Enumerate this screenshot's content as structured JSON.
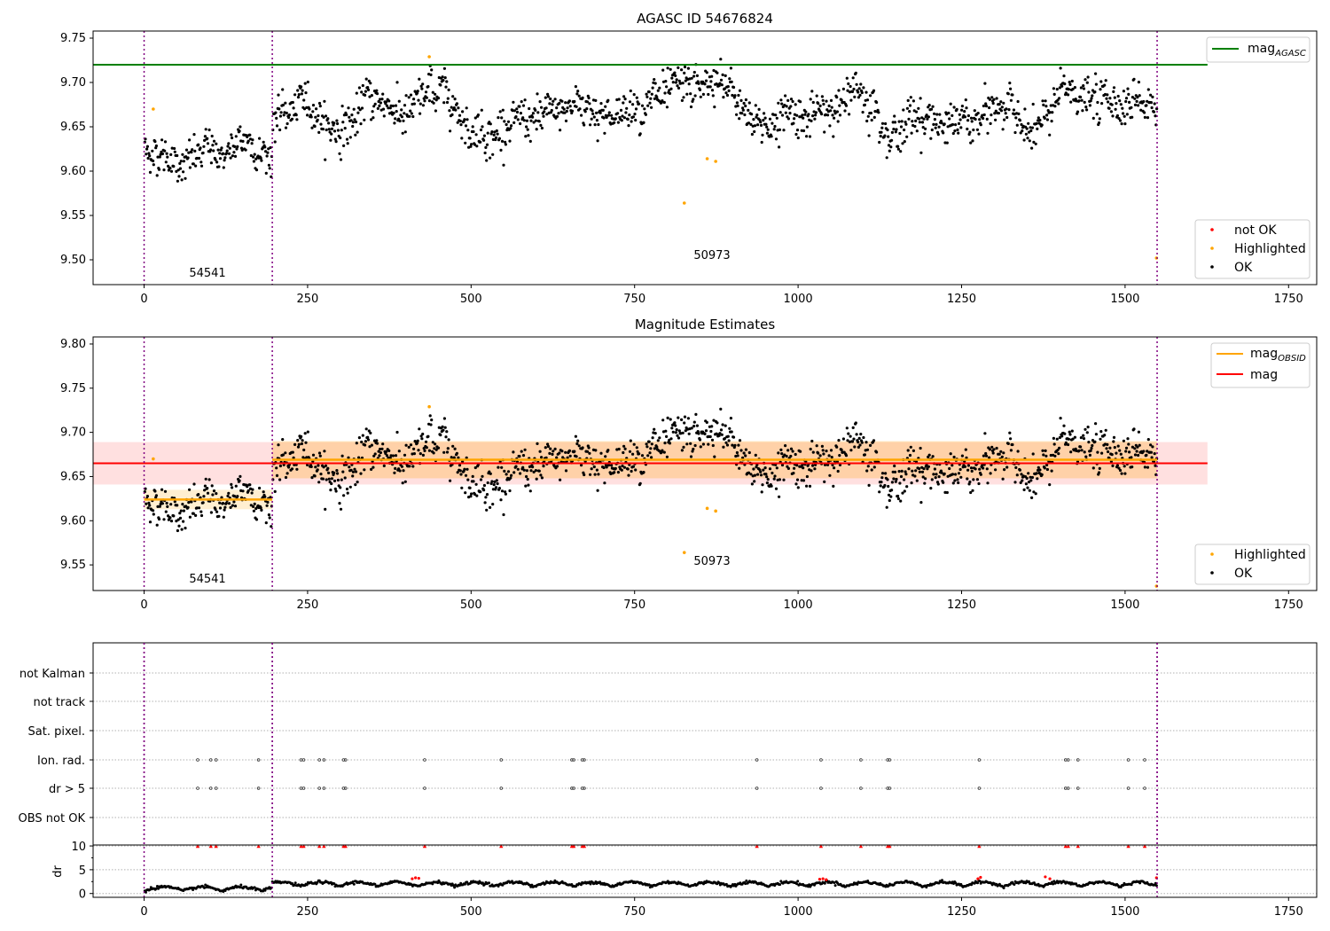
{
  "colors": {
    "ok": "#000000",
    "highlighted": "#ffa500",
    "not_ok": "#ff0000",
    "mag_agasc": "#008000",
    "mag_obsid": "#ffa500",
    "mag": "#ff0000",
    "obs_boundary": "#800080"
  },
  "chart_data": [
    {
      "type": "scatter",
      "title": "AGASC ID 54676824",
      "xlabel": "",
      "ylabel": "",
      "xlim": [
        -78,
        1793
      ],
      "ylim": [
        9.472,
        9.758
      ],
      "xticks": [
        0,
        250,
        500,
        750,
        1000,
        1250,
        1500,
        1750
      ],
      "yticks": [
        9.5,
        9.55,
        9.6,
        9.65,
        9.7,
        9.75
      ],
      "grid": false,
      "vlines": [
        0,
        196,
        1549
      ],
      "hlines": [
        {
          "name": "mag_AGASC",
          "y": 9.72,
          "x": [
            -78,
            1626
          ]
        }
      ],
      "obs_labels": [
        {
          "text": "54541",
          "x": 98,
          "y": 9.486
        },
        {
          "text": "50973",
          "x": 870,
          "y": 9.505
        }
      ],
      "legend_lines": {
        "placement": "top-right",
        "entries": [
          {
            "label": "mag",
            "sub": "AGASC"
          }
        ]
      },
      "legend_points": {
        "placement": "bottom-right",
        "entries": [
          "not OK",
          "Highlighted",
          "OK"
        ]
      },
      "highlighted_points": [
        [
          14,
          9.67
        ],
        [
          436,
          9.729
        ],
        [
          826,
          9.564
        ],
        [
          861,
          9.614
        ],
        [
          874,
          9.611
        ],
        [
          1548,
          9.502
        ]
      ],
      "ok_segments": [
        {
          "x": [
            0,
            196
          ],
          "mean": 9.624,
          "spread": 0.02
        },
        {
          "x": [
            196,
            1549
          ],
          "mean": 9.668,
          "spread": 0.022
        }
      ]
    },
    {
      "type": "scatter",
      "title": "Magnitude Estimates",
      "xlabel": "",
      "ylabel": "",
      "xlim": [
        -78,
        1793
      ],
      "ylim": [
        9.521,
        9.808
      ],
      "xticks": [
        0,
        250,
        500,
        750,
        1000,
        1250,
        1500,
        1750
      ],
      "yticks": [
        9.55,
        9.6,
        9.65,
        9.7,
        9.75,
        9.8
      ],
      "grid": false,
      "vlines": [
        0,
        196,
        1549
      ],
      "bands": [
        {
          "name": "mag",
          "y": [
            9.641,
            9.689
          ],
          "x": [
            -78,
            1626
          ]
        },
        {
          "name": "mag_OBSID 54541",
          "y": [
            9.613,
            9.635
          ],
          "x": [
            0,
            196
          ]
        },
        {
          "name": "mag_OBSID 50973",
          "y": [
            9.648,
            9.69
          ],
          "x": [
            196,
            1549
          ]
        }
      ],
      "lines": [
        {
          "name": "mag_OBSID",
          "segments": [
            {
              "x": [
                0,
                196
              ],
              "y": 9.624
            },
            {
              "x": [
                196,
                1549
              ],
              "y": 9.669
            }
          ]
        },
        {
          "name": "mag",
          "y": 9.665,
          "x": [
            -78,
            1626
          ]
        }
      ],
      "obs_labels": [
        {
          "text": "54541",
          "x": 98,
          "y": 9.535
        },
        {
          "text": "50973",
          "x": 870,
          "y": 9.554
        }
      ],
      "legend_lines": {
        "placement": "top-right",
        "entries": [
          {
            "label": "mag",
            "sub": "OBSID"
          },
          {
            "label": "mag",
            "sub": ""
          }
        ]
      },
      "legend_points": {
        "placement": "bottom-right",
        "entries": [
          "Highlighted",
          "OK"
        ]
      },
      "highlighted_points": [
        [
          14,
          9.67
        ],
        [
          436,
          9.729
        ],
        [
          826,
          9.564
        ],
        [
          861,
          9.614
        ],
        [
          874,
          9.611
        ],
        [
          1548,
          9.526
        ]
      ]
    },
    {
      "type": "scatter",
      "title": "",
      "xlabel": "",
      "ylabel": "",
      "xlim": [
        -78,
        1793
      ],
      "xticks": [
        0,
        250,
        500,
        750,
        1000,
        1250,
        1500,
        1750
      ],
      "vlines": [
        0,
        196,
        1549
      ],
      "grid": true,
      "flag_rows": [
        "not Kalman",
        "not track",
        "Sat. pixel.",
        "Ion. rad.",
        "dr > 5",
        "OBS not OK"
      ],
      "flag_points": {
        "Ion. rad.": [
          82,
          102,
          110,
          175,
          240,
          244,
          268,
          275,
          305,
          308,
          429,
          546,
          654,
          657,
          670,
          673,
          937,
          1035,
          1096,
          1137,
          1140,
          1277,
          1409,
          1413,
          1428,
          1505,
          1530
        ],
        "dr > 5": [
          82,
          102,
          110,
          175,
          240,
          244,
          268,
          275,
          305,
          308,
          429,
          546,
          654,
          657,
          670,
          673,
          937,
          1035,
          1096,
          1137,
          1140,
          1277,
          1409,
          1413,
          1428,
          1505,
          1530
        ]
      }
    },
    {
      "type": "scatter",
      "title": "",
      "xlabel": "",
      "ylabel": "dr",
      "xlim": [
        -78,
        1793
      ],
      "ylim": [
        -0.8,
        10.2
      ],
      "xticks": [
        0,
        250,
        500,
        750,
        1000,
        1250,
        1500,
        1750
      ],
      "yticks": [
        0,
        5,
        10
      ],
      "grid": true,
      "vlines": [
        0,
        196,
        1549
      ],
      "clipped_points_at_10": [
        82,
        102,
        110,
        175,
        240,
        244,
        268,
        275,
        305,
        308,
        429,
        546,
        654,
        657,
        670,
        673,
        937,
        1035,
        1096,
        1137,
        1140,
        1277,
        1409,
        1413,
        1428,
        1505,
        1530
      ],
      "red_points": [
        [
          410,
          3.1
        ],
        [
          415,
          3.3
        ],
        [
          420,
          3.2
        ],
        [
          1033,
          3.0
        ],
        [
          1038,
          3.1
        ],
        [
          1043,
          2.9
        ],
        [
          1275,
          3.1
        ],
        [
          1279,
          3.4
        ],
        [
          1378,
          3.5
        ],
        [
          1385,
          3.1
        ],
        [
          1548,
          3.3
        ]
      ]
    }
  ]
}
